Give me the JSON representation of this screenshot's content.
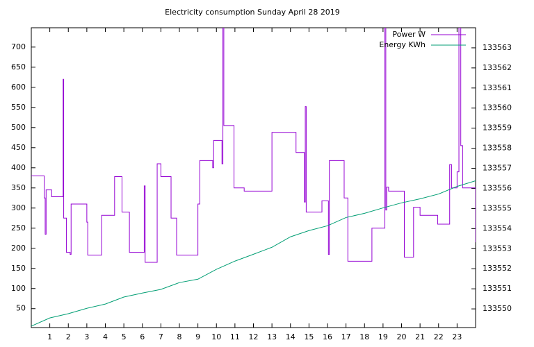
{
  "chart_data": {
    "type": "line",
    "title": "Electricity consumption Sunday April 28 2019",
    "xlim": [
      0,
      24
    ],
    "xticks": [
      1,
      2,
      3,
      4,
      5,
      6,
      7,
      8,
      9,
      10,
      11,
      12,
      13,
      14,
      15,
      16,
      17,
      18,
      19,
      20,
      21,
      22,
      23
    ],
    "ylim": [
      3,
      748
    ],
    "yticks": [
      50,
      100,
      150,
      200,
      250,
      300,
      350,
      400,
      450,
      500,
      550,
      600,
      650,
      700
    ],
    "y2lim": [
      133549.07,
      133564.0
    ],
    "y2ticks": [
      133550,
      133551,
      133552,
      133553,
      133554,
      133555,
      133556,
      133557,
      133558,
      133559,
      133560,
      133561,
      133562,
      133563
    ],
    "legend": "top-right",
    "series": [
      {
        "name": "Power W",
        "color": "#9400d3",
        "steps": true,
        "x": [
          0,
          0.7,
          0.75,
          0.8,
          1.1,
          1.7,
          1.72,
          1.75,
          1.9,
          2.1,
          2.15,
          3.0,
          3.05,
          3.8,
          4.5,
          4.9,
          5.3,
          6.0,
          6.1,
          6.15,
          6.8,
          7.0,
          7.5,
          7.55,
          7.85,
          9.0,
          9.1,
          9.8,
          9.85,
          10.2,
          10.3,
          10.35,
          10.4,
          10.95,
          11.5,
          13.0,
          14.3,
          14.7,
          14.75,
          14.8,
          14.85,
          15.7,
          16.0,
          16.05,
          16.1,
          16.9,
          17.1,
          18.4,
          19.1,
          19.15,
          19.2,
          19.3,
          20.1,
          20.15,
          20.6,
          20.65,
          21.0,
          21.9,
          21.95,
          22.6,
          22.7,
          23.0,
          23.1,
          23.2,
          23.3,
          23.9,
          24
        ],
        "values": [
          380,
          325,
          235,
          345,
          328,
          328,
          620,
          275,
          190,
          185,
          310,
          265,
          183,
          282,
          378,
          290,
          190,
          190,
          355,
          165,
          410,
          378,
          378,
          275,
          183,
          310,
          418,
          400,
          468,
          468,
          410,
          748,
          505,
          350,
          342,
          488,
          438,
          438,
          315,
          552,
          290,
          318,
          318,
          185,
          418,
          325,
          168,
          250,
          748,
          295,
          352,
          342,
          342,
          178,
          178,
          302,
          282,
          282,
          260,
          408,
          350,
          390,
          748,
          455,
          350,
          350,
          215
        ]
      },
      {
        "name": "Energy KWh",
        "color": "#009e73",
        "axis": "y2",
        "x": [
          0,
          1,
          2,
          3,
          4,
          5,
          6,
          7,
          8,
          9,
          10,
          11,
          12,
          13,
          14,
          15,
          16,
          17,
          18,
          19,
          20,
          21,
          22,
          23,
          24
        ],
        "values": [
          133549.14,
          133549.55,
          133549.76,
          133550.03,
          133550.24,
          133550.59,
          133550.79,
          133550.97,
          133551.31,
          133551.48,
          133551.97,
          133552.38,
          133552.72,
          133553.07,
          133553.59,
          133553.9,
          133554.14,
          133554.55,
          133554.76,
          133555.03,
          133555.28,
          133555.48,
          133555.72,
          133556.1,
          133556.38
        ]
      }
    ]
  }
}
